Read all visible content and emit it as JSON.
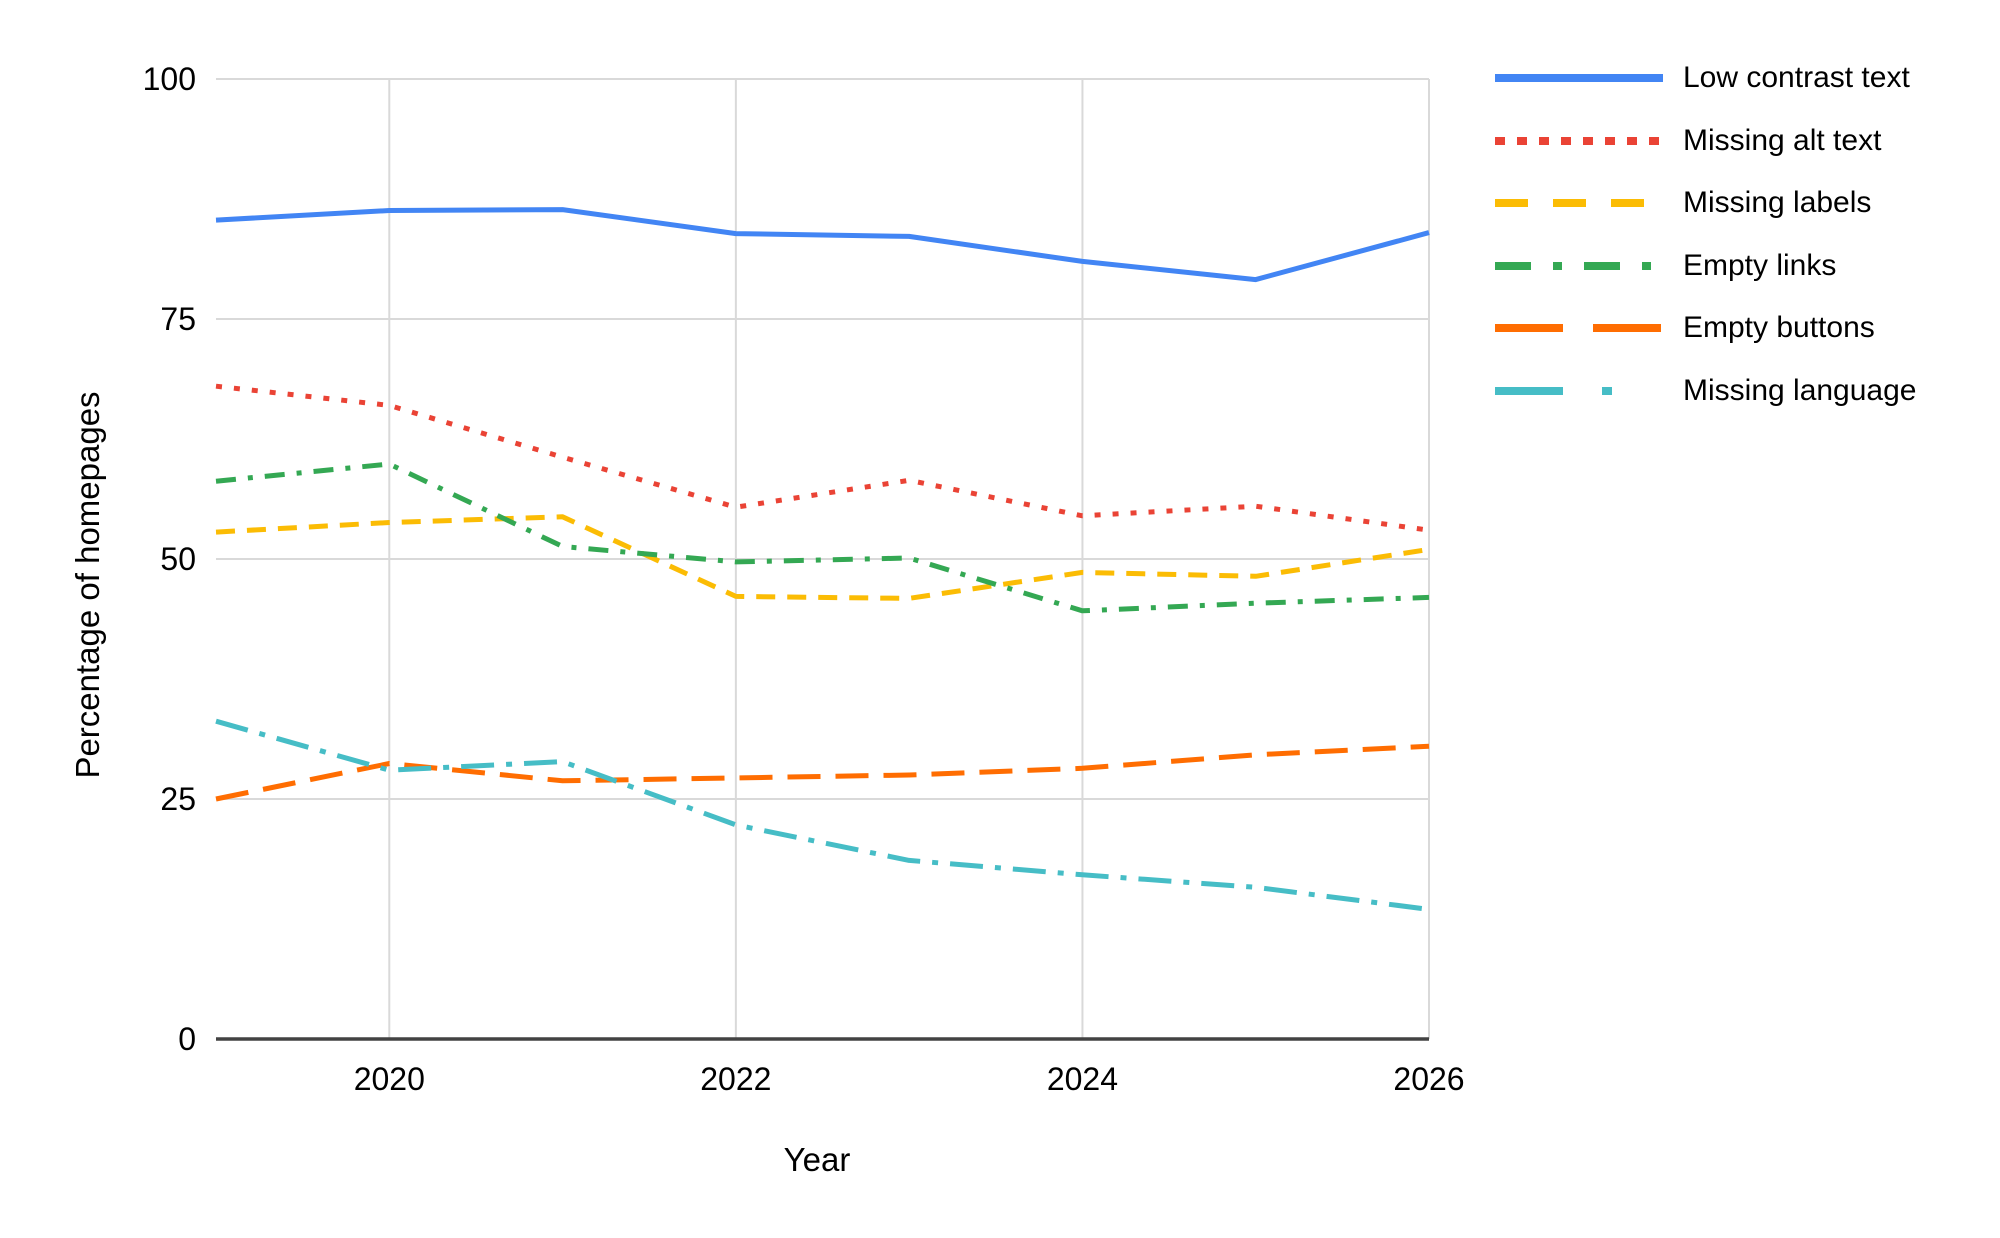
{
  "chart_data": {
    "type": "line",
    "title": "",
    "xlabel": "Year",
    "ylabel": "Percentage of homepages",
    "x": [
      2019,
      2020,
      2021,
      2022,
      2023,
      2024,
      2025,
      2026
    ],
    "xlim": [
      2019,
      2026
    ],
    "ylim": [
      0,
      100
    ],
    "x_ticks": [
      2020,
      2022,
      2024,
      2026
    ],
    "x_tick_labels": [
      "2020",
      "2022",
      "2024",
      "2026"
    ],
    "y_ticks": [
      0,
      25,
      50,
      75,
      100
    ],
    "y_tick_labels": [
      "0",
      "25",
      "50",
      "75",
      "100"
    ],
    "grid": true,
    "legend_position": "right",
    "series": [
      {
        "name": "Low contrast text",
        "color": "#4285F4",
        "dash": "solid",
        "values": [
          85.3,
          86.3,
          86.4,
          83.9,
          83.6,
          81.0,
          79.1,
          84.0
        ]
      },
      {
        "name": "Missing alt text",
        "color": "#EA4335",
        "dash": "dotted",
        "values": [
          68.0,
          66.0,
          60.6,
          55.4,
          58.2,
          54.5,
          55.5,
          53.0
        ]
      },
      {
        "name": "Missing labels",
        "color": "#FBBC04",
        "dash": "dashed",
        "values": [
          52.8,
          53.8,
          54.4,
          46.1,
          45.9,
          48.6,
          48.2,
          51.0
        ]
      },
      {
        "name": "Empty links",
        "color": "#34A853",
        "dash": "dash-dot",
        "values": [
          58.1,
          59.9,
          51.3,
          49.7,
          50.1,
          44.6,
          45.4,
          46.0
        ]
      },
      {
        "name": "Empty buttons",
        "color": "#FF6D01",
        "dash": "long-dash",
        "values": [
          25.0,
          28.7,
          26.9,
          27.2,
          27.5,
          28.2,
          29.6,
          30.5
        ]
      },
      {
        "name": "Missing language",
        "color": "#46BDC6",
        "dash": "long-dash-dot",
        "values": [
          33.1,
          28.0,
          28.9,
          22.3,
          18.6,
          17.1,
          15.8,
          13.5
        ]
      }
    ]
  },
  "colors": {
    "background": "#ffffff",
    "grid": "#d9d9d9",
    "axis_line": "#424242",
    "text": "#000000"
  }
}
